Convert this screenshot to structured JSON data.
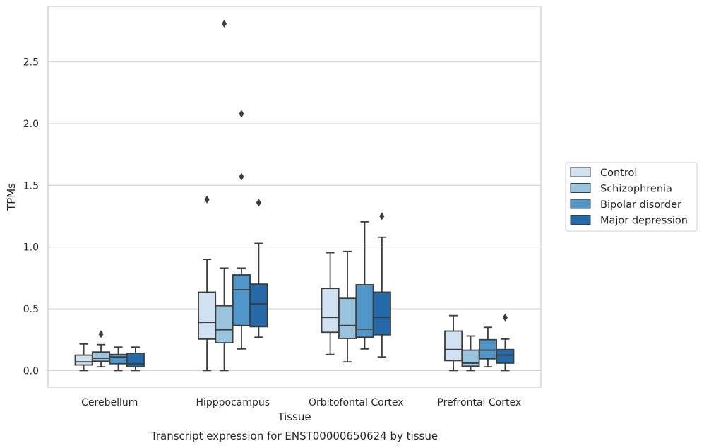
{
  "chart_data": {
    "type": "box",
    "title": "Transcript expression for ENST00000650624 by tissue",
    "xlabel": "Tissue",
    "ylabel": "TPMs",
    "ylim": [
      -0.135,
      2.95
    ],
    "yticks": [
      0.0,
      0.5,
      1.0,
      1.5,
      2.0,
      2.5
    ],
    "ytick_labels": [
      "0.0",
      "0.5",
      "1.0",
      "1.5",
      "2.0",
      "2.5"
    ],
    "grid": "horizontal",
    "legend_position": "right-outside",
    "categories": [
      "Cerebellum",
      "Hipppocampus",
      "Orbitofontal Cortex",
      "Prefrontal Cortex"
    ],
    "series": [
      {
        "name": "Control",
        "color": "#d0e2f2",
        "boxes": [
          {
            "whislo": 0.0,
            "q1": 0.045,
            "med": 0.07,
            "q3": 0.125,
            "whishi": 0.215,
            "fliers": []
          },
          {
            "whislo": 0.0,
            "q1": 0.255,
            "med": 0.39,
            "q3": 0.635,
            "whishi": 0.9,
            "fliers": [
              1.385
            ]
          },
          {
            "whislo": 0.13,
            "q1": 0.31,
            "med": 0.43,
            "q3": 0.665,
            "whishi": 0.955,
            "fliers": []
          },
          {
            "whislo": 0.0,
            "q1": 0.08,
            "med": 0.17,
            "q3": 0.32,
            "whishi": 0.445,
            "fliers": []
          }
        ]
      },
      {
        "name": "Schizophrenia",
        "color": "#9ac4de",
        "boxes": [
          {
            "whislo": 0.03,
            "q1": 0.075,
            "med": 0.1,
            "q3": 0.15,
            "whishi": 0.21,
            "fliers": [
              0.295
            ]
          },
          {
            "whislo": 0.0,
            "q1": 0.225,
            "med": 0.33,
            "q3": 0.525,
            "whishi": 0.83,
            "fliers": [
              2.81
            ]
          },
          {
            "whislo": 0.07,
            "q1": 0.26,
            "med": 0.365,
            "q3": 0.585,
            "whishi": 0.965,
            "fliers": []
          },
          {
            "whislo": 0.0,
            "q1": 0.035,
            "med": 0.06,
            "q3": 0.165,
            "whishi": 0.28,
            "fliers": []
          }
        ]
      },
      {
        "name": "Bipolar disorder",
        "color": "#5196c8",
        "boxes": [
          {
            "whislo": 0.0,
            "q1": 0.055,
            "med": 0.11,
            "q3": 0.13,
            "whishi": 0.19,
            "fliers": []
          },
          {
            "whislo": 0.175,
            "q1": 0.365,
            "med": 0.655,
            "q3": 0.775,
            "whishi": 0.83,
            "fliers": [
              2.08,
              1.57
            ]
          },
          {
            "whislo": 0.175,
            "q1": 0.27,
            "med": 0.335,
            "q3": 0.695,
            "whishi": 1.205,
            "fliers": []
          },
          {
            "whislo": 0.03,
            "q1": 0.095,
            "med": 0.165,
            "q3": 0.25,
            "whishi": 0.35,
            "fliers": []
          }
        ]
      },
      {
        "name": "Major depression",
        "color": "#2469a8",
        "boxes": [
          {
            "whislo": 0.0,
            "q1": 0.03,
            "med": 0.055,
            "q3": 0.14,
            "whishi": 0.19,
            "fliers": []
          },
          {
            "whislo": 0.27,
            "q1": 0.355,
            "med": 0.54,
            "q3": 0.7,
            "whishi": 1.03,
            "fliers": [
              1.36
            ]
          },
          {
            "whislo": 0.11,
            "q1": 0.29,
            "med": 0.43,
            "q3": 0.635,
            "whishi": 1.08,
            "fliers": [
              1.25
            ]
          },
          {
            "whislo": 0.0,
            "q1": 0.06,
            "med": 0.125,
            "q3": 0.17,
            "whishi": 0.255,
            "fliers": [
              0.43
            ]
          }
        ]
      }
    ]
  }
}
